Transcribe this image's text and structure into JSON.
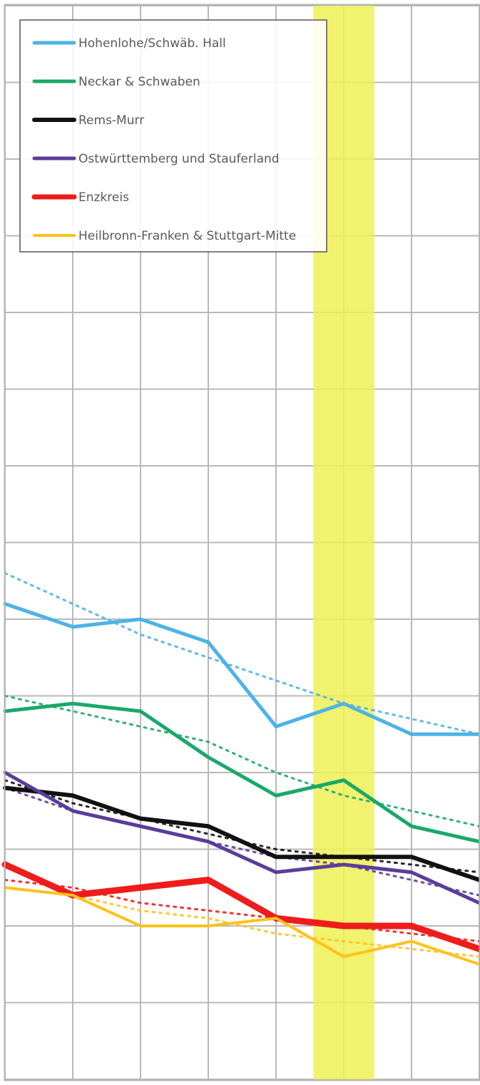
{
  "chart_data": {
    "type": "line",
    "title": "",
    "xlabel": "",
    "ylabel": "",
    "x": [
      0,
      1,
      2,
      3,
      4,
      5,
      6,
      7
    ],
    "xlim": [
      0,
      7
    ],
    "ylim": [
      0,
      14
    ],
    "grid": true,
    "legend_position": "top-left",
    "highlight": {
      "x_start": 4.55,
      "x_end": 5.45,
      "color": "#eef055"
    },
    "series": [
      {
        "name": "Hohenlohe/Schwäb. Hall",
        "color": "#4cb3e6",
        "values": [
          6.2,
          5.9,
          6.0,
          5.7,
          4.6,
          4.9,
          4.5,
          4.5
        ],
        "trend": [
          6.6,
          6.2,
          5.8,
          5.5,
          5.2,
          4.9,
          4.7,
          4.5
        ]
      },
      {
        "name": "Neckar & Schwaben",
        "color": "#1aa86a",
        "values": [
          4.8,
          4.9,
          4.8,
          4.2,
          3.7,
          3.9,
          3.3,
          3.1
        ],
        "trend": [
          5.0,
          4.8,
          4.6,
          4.4,
          4.0,
          3.7,
          3.5,
          3.3
        ]
      },
      {
        "name": "Rems-Murr",
        "color": "#111111",
        "values": [
          3.8,
          3.7,
          3.4,
          3.3,
          2.9,
          2.9,
          2.9,
          2.6
        ],
        "trend": [
          3.9,
          3.6,
          3.4,
          3.2,
          3.0,
          2.9,
          2.8,
          2.7
        ]
      },
      {
        "name": "Ostwürttemberg und Stauferland",
        "color": "#5a3d9a",
        "values": [
          4.0,
          3.5,
          3.3,
          3.1,
          2.7,
          2.8,
          2.7,
          2.3
        ],
        "trend": [
          3.8,
          3.5,
          3.3,
          3.1,
          2.9,
          2.8,
          2.6,
          2.4
        ]
      },
      {
        "name": "Enzkreis",
        "color": "#ef1c1c",
        "values": [
          2.8,
          2.4,
          2.5,
          2.6,
          2.1,
          2.0,
          2.0,
          1.7
        ],
        "trend": [
          2.6,
          2.5,
          2.3,
          2.2,
          2.1,
          2.0,
          1.9,
          1.8
        ]
      },
      {
        "name": "Heilbronn-Franken & Stuttgart-Mitte",
        "color": "#ffc21a",
        "values": [
          2.5,
          2.4,
          2.0,
          2.0,
          2.1,
          1.6,
          1.8,
          1.5
        ],
        "trend": [
          2.5,
          2.4,
          2.2,
          2.1,
          1.9,
          1.8,
          1.7,
          1.6
        ]
      }
    ]
  }
}
